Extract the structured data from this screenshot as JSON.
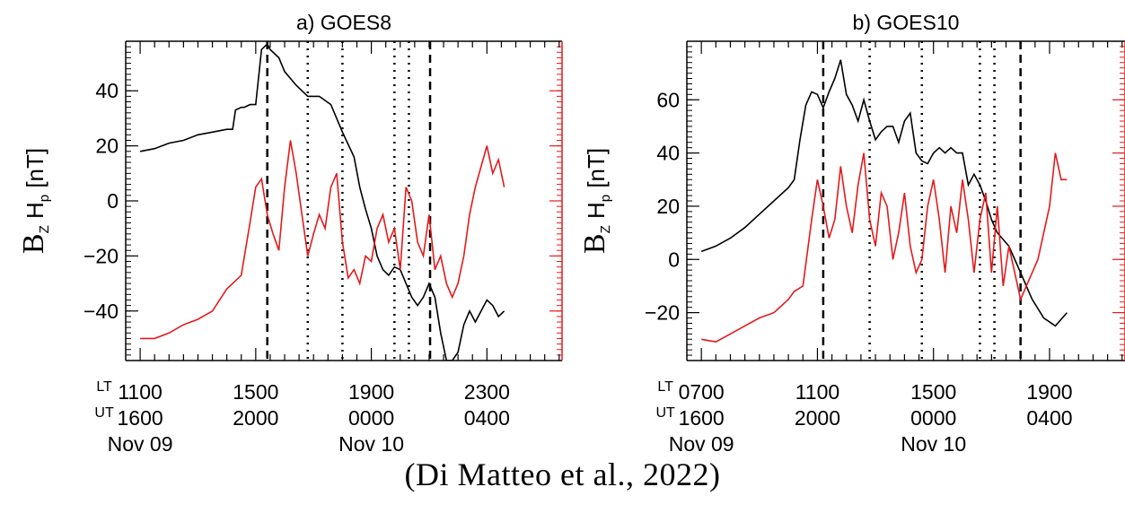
{
  "citation": "(Di Matteo et al., 2022)",
  "chart_data": [
    {
      "type": "line",
      "title": "a) GOES8",
      "ylabel": "B₂ Hₚ [nT]",
      "ylabel_parts": {
        "b": "B",
        "b_sub": "Z",
        "h": "H",
        "h_sub": "p",
        "unit": "[nT]"
      },
      "ylim": [
        -58,
        58
      ],
      "yticks": [
        -40,
        -20,
        0,
        20,
        40
      ],
      "xlim_hours_ut": [
        15.5,
        30.6
      ],
      "x_label_rows": {
        "lt": "LT",
        "ut": "UT"
      },
      "x_tick_labels": [
        {
          "lt": "1100",
          "ut": "1600",
          "date": "Nov 09"
        },
        {
          "lt": "1500",
          "ut": "2000",
          "date": ""
        },
        {
          "lt": "1900",
          "ut": "0000",
          "date": "Nov 10"
        },
        {
          "lt": "2300",
          "ut": "0400",
          "date": ""
        }
      ],
      "dashed_lines_ut": [
        "2024",
        "0202"
      ],
      "dotted_lines_ut": [
        "2148",
        "2300",
        "0048",
        "0118"
      ],
      "series": [
        {
          "color": "#000000",
          "x": [
            "1600",
            "1630",
            "1700",
            "1730",
            "1800",
            "1830",
            "1900",
            "1912",
            "1918",
            "1930",
            "1936",
            "1948",
            "2000",
            "2012",
            "2024",
            "2030",
            "2048",
            "2100",
            "2124",
            "2148",
            "2212",
            "2236",
            "2300",
            "2324",
            "2336",
            "2348",
            "0000",
            "0012",
            "0024",
            "0036",
            "0048",
            "0100",
            "0112",
            "0124",
            "0136",
            "0148",
            "0200",
            "0212",
            "0224",
            "0236",
            "0248",
            "0300",
            "0312",
            "0324",
            "0336",
            "0400",
            "0412",
            "0424",
            "0436"
          ],
          "values": [
            18,
            19,
            21,
            22,
            24,
            25,
            26,
            26,
            33,
            34,
            34,
            35,
            35,
            55,
            57,
            55,
            52,
            47,
            42,
            38,
            38,
            35,
            25,
            16,
            5,
            -3,
            -10,
            -20,
            -25,
            -27,
            -24,
            -25,
            -30,
            -35,
            -38,
            -35,
            -30,
            -35,
            -48,
            -58,
            -58,
            -55,
            -45,
            -40,
            -44,
            -36,
            -38,
            -42,
            -40
          ]
        },
        {
          "color": "#e31a1c",
          "x": [
            "1600",
            "1630",
            "1700",
            "1730",
            "1800",
            "1830",
            "1900",
            "1912",
            "1930",
            "1948",
            "2000",
            "2012",
            "2024",
            "2036",
            "2048",
            "2100",
            "2112",
            "2124",
            "2136",
            "2148",
            "2200",
            "2212",
            "2224",
            "2236",
            "2248",
            "2300",
            "2312",
            "2324",
            "2336",
            "2348",
            "0000",
            "0012",
            "0024",
            "0036",
            "0048",
            "0100",
            "0112",
            "0124",
            "0136",
            "0148",
            "0200",
            "0212",
            "0224",
            "0236",
            "0248",
            "0300",
            "0312",
            "0324",
            "0336",
            "0400",
            "0412",
            "0424",
            "0436"
          ],
          "values": [
            -50,
            -50,
            -48,
            -45,
            -43,
            -40,
            -32,
            -30,
            -27,
            -8,
            5,
            8,
            -5,
            -12,
            -18,
            5,
            22,
            10,
            -5,
            -20,
            -12,
            -5,
            -10,
            5,
            10,
            -15,
            -28,
            -25,
            -30,
            -20,
            -22,
            -10,
            -5,
            -15,
            -10,
            -25,
            5,
            0,
            -15,
            -20,
            -5,
            -25,
            -20,
            -30,
            -35,
            -30,
            -20,
            -5,
            5,
            20,
            10,
            15,
            5
          ]
        }
      ]
    },
    {
      "type": "line",
      "title": "b) GOES10",
      "ylabel": "B₂ Hₚ [nT]",
      "ylabel_parts": {
        "b": "B",
        "b_sub": "Z",
        "h": "H",
        "h_sub": "p",
        "unit": "[nT]"
      },
      "ylim": [
        -38,
        82
      ],
      "yticks": [
        -20,
        0,
        20,
        40,
        60
      ],
      "xlim_hours_ut": [
        15.5,
        30.6
      ],
      "x_label_rows": {
        "lt": "LT",
        "ut": "UT"
      },
      "x_tick_labels": [
        {
          "lt": "0700",
          "ut": "1600",
          "date": "Nov 09"
        },
        {
          "lt": "1100",
          "ut": "2000",
          "date": ""
        },
        {
          "lt": "1500",
          "ut": "0000",
          "date": "Nov 10"
        },
        {
          "lt": "1900",
          "ut": "0400",
          "date": ""
        }
      ],
      "dashed_lines_ut": [
        "2012",
        "0300"
      ],
      "dotted_lines_ut": [
        "2148",
        "2336",
        "0136",
        "0206"
      ],
      "series": [
        {
          "color": "#000000",
          "x": [
            "1600",
            "1630",
            "1700",
            "1730",
            "1800",
            "1830",
            "1900",
            "1912",
            "1924",
            "1936",
            "1948",
            "2000",
            "2012",
            "2024",
            "2036",
            "2048",
            "2100",
            "2112",
            "2124",
            "2136",
            "2148",
            "2200",
            "2212",
            "2224",
            "2236",
            "2248",
            "2300",
            "2312",
            "2324",
            "2336",
            "2348",
            "0000",
            "0012",
            "0024",
            "0036",
            "0048",
            "0100",
            "0112",
            "0124",
            "0136",
            "0148",
            "0200",
            "0212",
            "0236",
            "0300",
            "0324",
            "0348",
            "0412",
            "0436"
          ],
          "values": [
            3,
            5,
            8,
            12,
            17,
            22,
            27,
            30,
            45,
            58,
            63,
            62,
            57,
            63,
            68,
            75,
            62,
            58,
            52,
            60,
            52,
            45,
            48,
            50,
            50,
            44,
            52,
            55,
            40,
            37,
            36,
            40,
            42,
            40,
            42,
            40,
            40,
            28,
            32,
            28,
            22,
            15,
            10,
            5,
            -5,
            -15,
            -22,
            -25,
            -20
          ]
        },
        {
          "color": "#e31a1c",
          "x": [
            "1600",
            "1630",
            "1700",
            "1730",
            "1800",
            "1830",
            "1900",
            "1912",
            "1930",
            "1948",
            "2000",
            "2012",
            "2024",
            "2036",
            "2048",
            "2100",
            "2112",
            "2124",
            "2136",
            "2148",
            "2200",
            "2212",
            "2224",
            "2236",
            "2248",
            "2300",
            "2312",
            "2324",
            "2336",
            "2348",
            "0000",
            "0012",
            "0024",
            "0036",
            "0048",
            "0100",
            "0112",
            "0124",
            "0136",
            "0148",
            "0200",
            "0212",
            "0224",
            "0236",
            "0248",
            "0300",
            "0312",
            "0324",
            "0336",
            "0400",
            "0412",
            "0424",
            "0436"
          ],
          "values": [
            -30,
            -31,
            -28,
            -25,
            -22,
            -20,
            -15,
            -12,
            -10,
            15,
            30,
            20,
            8,
            15,
            35,
            20,
            10,
            28,
            40,
            15,
            5,
            25,
            20,
            0,
            10,
            25,
            5,
            -5,
            0,
            20,
            30,
            15,
            -5,
            20,
            10,
            30,
            15,
            -5,
            15,
            25,
            -5,
            20,
            -10,
            5,
            -5,
            -15,
            -10,
            -5,
            0,
            20,
            40,
            30,
            30
          ]
        }
      ]
    }
  ]
}
